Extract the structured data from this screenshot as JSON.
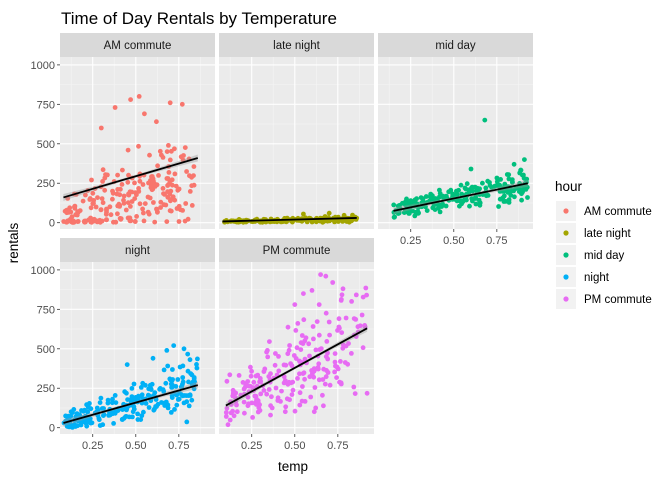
{
  "chart_data": {
    "type": "scatter",
    "title": "Time of Day Rentals by Temperature",
    "xlabel": "temp",
    "ylabel": "rentals",
    "xlim": [
      0.06,
      0.96
    ],
    "ylim": [
      -40,
      1050
    ],
    "x_ticks": [
      0.25,
      0.5,
      0.75
    ],
    "x_tick_labels": [
      "0.25",
      "0.50",
      "0.75"
    ],
    "y_ticks": [
      0,
      250,
      500,
      750,
      1000
    ],
    "y_tick_labels": [
      "0",
      "250",
      "500",
      "750",
      "1000"
    ],
    "grid": true,
    "legend": {
      "title": "hour",
      "placement": "right"
    },
    "facets": [
      {
        "name": "AM commute",
        "color": "#F8766D",
        "x_range": [
          0.08,
          0.86
        ],
        "fit": [
          [
            0.08,
            160
          ],
          [
            0.86,
            410
          ]
        ],
        "y_center": [
          30,
          260
        ],
        "y_spread": [
          90,
          170
        ],
        "outliers": [
          [
            0.52,
            800
          ],
          [
            0.47,
            780
          ],
          [
            0.38,
            730
          ],
          [
            0.7,
            760
          ],
          [
            0.77,
            750
          ],
          [
            0.55,
            690
          ],
          [
            0.3,
            600
          ],
          [
            0.62,
            640
          ]
        ]
      },
      {
        "name": "late night",
        "color": "#A3A500",
        "x_range": [
          0.08,
          0.86
        ],
        "fit": [
          [
            0.08,
            8
          ],
          [
            0.86,
            30
          ]
        ],
        "y_center": [
          5,
          25
        ],
        "y_spread": [
          6,
          14
        ],
        "outliers": [
          [
            0.7,
            60
          ],
          [
            0.55,
            55
          ]
        ]
      },
      {
        "name": "mid day",
        "color": "#00BF7D",
        "x_range": [
          0.15,
          0.93
        ],
        "fit": [
          [
            0.15,
            75
          ],
          [
            0.93,
            250
          ]
        ],
        "y_center": [
          70,
          250
        ],
        "y_spread": [
          30,
          55
        ],
        "outliers": [
          [
            0.68,
            650
          ],
          [
            0.91,
            400
          ],
          [
            0.85,
            370
          ],
          [
            0.6,
            340
          ]
        ]
      },
      {
        "name": "night",
        "color": "#00B0F6",
        "x_range": [
          0.08,
          0.86
        ],
        "fit": [
          [
            0.08,
            30
          ],
          [
            0.86,
            270
          ]
        ],
        "y_center": [
          30,
          270
        ],
        "y_spread": [
          30,
          100
        ],
        "outliers": [
          [
            0.72,
            520
          ],
          [
            0.78,
            500
          ],
          [
            0.68,
            490
          ],
          [
            0.6,
            440
          ],
          [
            0.45,
            400
          ]
        ]
      },
      {
        "name": "PM commute",
        "color": "#E76BF3",
        "x_range": [
          0.1,
          0.92
        ],
        "fit": [
          [
            0.1,
            140
          ],
          [
            0.92,
            630
          ]
        ],
        "y_center": [
          140,
          610
        ],
        "y_spread": [
          80,
          200
        ],
        "outliers": [
          [
            0.65,
            970
          ],
          [
            0.68,
            960
          ],
          [
            0.72,
            920
          ],
          [
            0.78,
            880
          ],
          [
            0.6,
            870
          ],
          [
            0.55,
            850
          ],
          [
            0.83,
            800
          ],
          [
            0.5,
            780
          ]
        ]
      }
    ]
  }
}
